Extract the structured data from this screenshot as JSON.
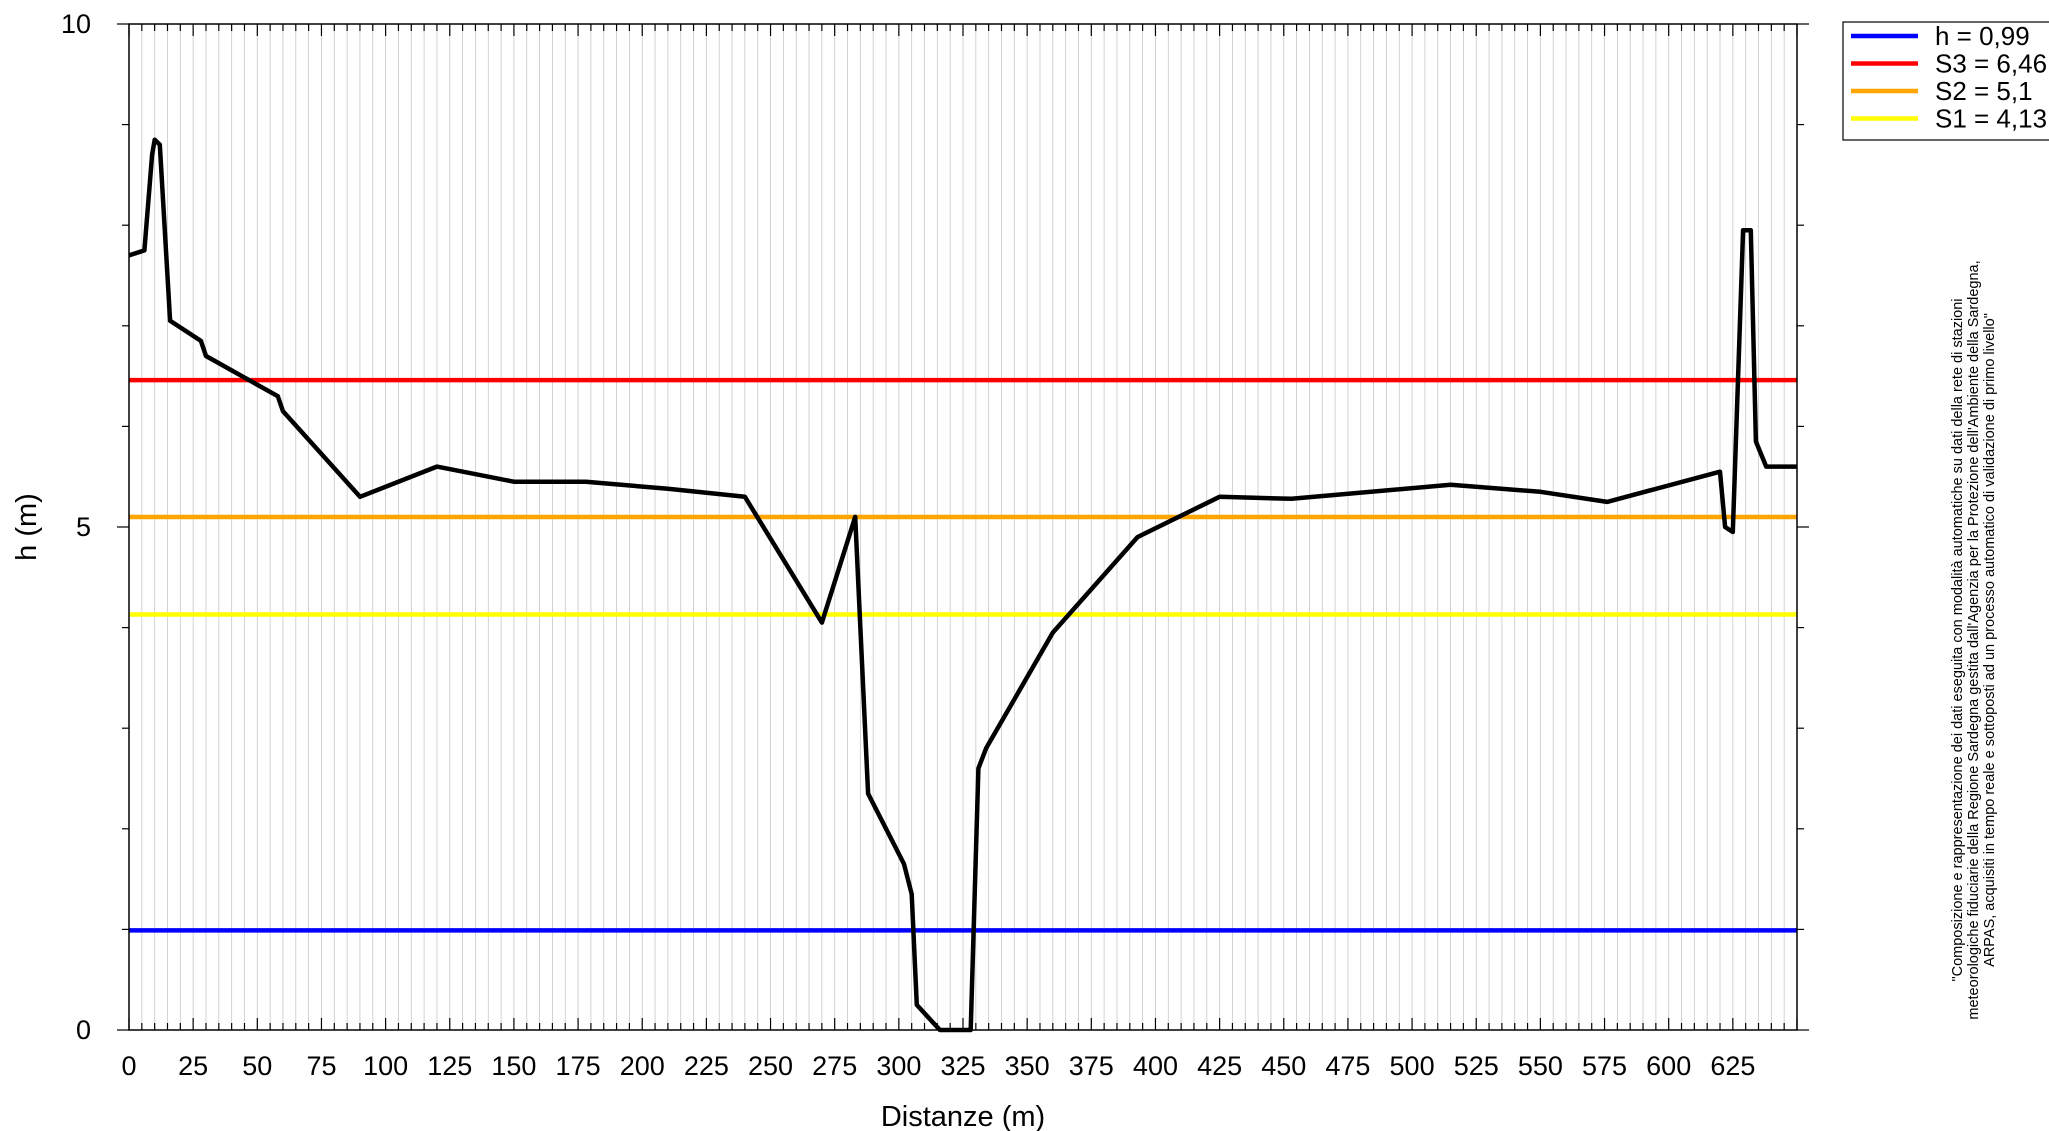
{
  "chart_data": {
    "type": "line",
    "title": "",
    "xlabel": "Distanze (m)",
    "ylabel": "h (m)",
    "xlim": [
      0,
      650
    ],
    "ylim": [
      0,
      10
    ],
    "x_ticks": [
      "0",
      "25",
      "50",
      "75",
      "100",
      "125",
      "150",
      "175",
      "200",
      "225",
      "250",
      "275",
      "300",
      "325",
      "350",
      "375",
      "400",
      "425",
      "450",
      "475",
      "500",
      "525",
      "550",
      "575",
      "600",
      "625"
    ],
    "y_ticks": [
      "0",
      "5",
      "10"
    ],
    "grid": "vertical minor lines every 5 m",
    "legend_position": "top-right, outside plot area",
    "series": [
      {
        "kind": "profile",
        "color": "#000000",
        "x": [
          0,
          6,
          9,
          10,
          12,
          16,
          28,
          30,
          58,
          60,
          90,
          120,
          150,
          178,
          210,
          240,
          270,
          283,
          288,
          302,
          305,
          307,
          316,
          328,
          331,
          334,
          360,
          393,
          425,
          453,
          515,
          550,
          576,
          620,
          622,
          625,
          629,
          632,
          634,
          638,
          645,
          650
        ],
        "y": [
          7.7,
          7.75,
          8.7,
          8.85,
          8.8,
          7.05,
          6.85,
          6.7,
          6.3,
          6.15,
          5.3,
          5.6,
          5.45,
          5.45,
          5.38,
          5.3,
          4.05,
          5.1,
          2.35,
          1.65,
          1.35,
          0.25,
          0.0,
          0.0,
          2.6,
          2.8,
          3.95,
          4.9,
          5.3,
          5.28,
          5.42,
          5.35,
          5.25,
          5.55,
          5.0,
          4.95,
          7.95,
          7.95,
          5.85,
          5.6,
          5.6,
          5.6
        ]
      },
      {
        "name": "h = 0,99",
        "value": 0.99,
        "color": "#0000ff"
      },
      {
        "name": "S3 = 6,46",
        "value": 6.46,
        "color": "#ff0000"
      },
      {
        "name": "S2 = 5,1",
        "value": 5.1,
        "color": "#ffa500"
      },
      {
        "name": "S1 = 4,13",
        "value": 4.13,
        "color": "#ffff00"
      }
    ],
    "annotation_lines": [
      "\"Composizione e rappresentazione dei dati eseguita con modalità automatiche su dati della rete di stazioni",
      "meteorologiche fiduciarie della Regione Sardegna gestita dall'Agenzia per la Protezione dell'Ambiente della Sardegna,",
      "ARPAS, acquisiti in tempo reale e sottoposti ad un processo automatico di validazione di primo livello\""
    ]
  }
}
